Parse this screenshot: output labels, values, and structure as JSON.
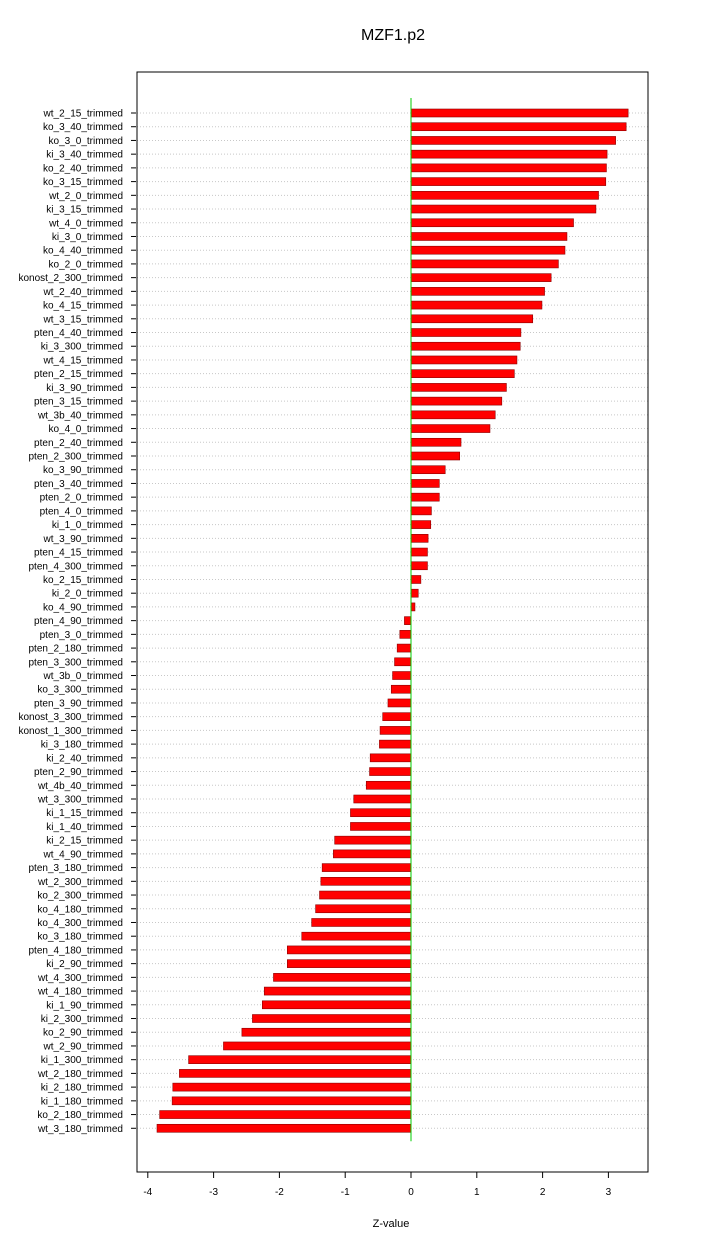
{
  "chart_data": {
    "type": "bar",
    "orientation": "horizontal",
    "title": "MZF1.p2",
    "xlabel": "Z-value",
    "ylabel": "",
    "xlim": [
      -4.0,
      3.6
    ],
    "x_ticks": [
      -4,
      -3,
      -2,
      -1,
      0,
      1,
      2,
      3
    ],
    "grid": "horizontal dotted",
    "colors": {
      "bar": "#ff0000",
      "bar_border": "#8b0000",
      "zero_line": "#00cc00",
      "grid": "#c8c8c8"
    },
    "categories": [
      "wt_2_15_trimmed",
      "ko_3_40_trimmed",
      "ko_3_0_trimmed",
      "ki_3_40_trimmed",
      "ko_2_40_trimmed",
      "ko_3_15_trimmed",
      "wt_2_0_trimmed",
      "ki_3_15_trimmed",
      "wt_4_0_trimmed",
      "ki_3_0_trimmed",
      "ko_4_40_trimmed",
      "ko_2_0_trimmed",
      "konost_2_300_trimmed",
      "wt_2_40_trimmed",
      "ko_4_15_trimmed",
      "wt_3_15_trimmed",
      "pten_4_40_trimmed",
      "ki_3_300_trimmed",
      "wt_4_15_trimmed",
      "pten_2_15_trimmed",
      "ki_3_90_trimmed",
      "pten_3_15_trimmed",
      "wt_3b_40_trimmed",
      "ko_4_0_trimmed",
      "pten_2_40_trimmed",
      "pten_2_300_trimmed",
      "ko_3_90_trimmed",
      "pten_3_40_trimmed",
      "pten_2_0_trimmed",
      "pten_4_0_trimmed",
      "ki_1_0_trimmed",
      "wt_3_90_trimmed",
      "pten_4_15_trimmed",
      "pten_4_300_trimmed",
      "ko_2_15_trimmed",
      "ki_2_0_trimmed",
      "ko_4_90_trimmed",
      "pten_4_90_trimmed",
      "pten_3_0_trimmed",
      "pten_2_180_trimmed",
      "pten_3_300_trimmed",
      "wt_3b_0_trimmed",
      "ko_3_300_trimmed",
      "pten_3_90_trimmed",
      "konost_3_300_trimmed",
      "konost_1_300_trimmed",
      "ki_3_180_trimmed",
      "ki_2_40_trimmed",
      "pten_2_90_trimmed",
      "wt_4b_40_trimmed",
      "wt_3_300_trimmed",
      "ki_1_15_trimmed",
      "ki_1_40_trimmed",
      "ki_2_15_trimmed",
      "wt_4_90_trimmed",
      "pten_3_180_trimmed",
      "wt_2_300_trimmed",
      "ko_2_300_trimmed",
      "ko_4_180_trimmed",
      "ko_4_300_trimmed",
      "ko_3_180_trimmed",
      "pten_4_180_trimmed",
      "ki_2_90_trimmed",
      "wt_4_300_trimmed",
      "wt_4_180_trimmed",
      "ki_1_90_trimmed",
      "ki_2_300_trimmed",
      "ko_2_90_trimmed",
      "wt_2_90_trimmed",
      "ki_1_300_trimmed",
      "wt_2_180_trimmed",
      "ki_2_180_trimmed",
      "ki_1_180_trimmed",
      "ko_2_180_trimmed",
      "wt_3_180_trimmed"
    ],
    "values": [
      3.3,
      3.27,
      3.11,
      2.98,
      2.97,
      2.96,
      2.85,
      2.81,
      2.47,
      2.37,
      2.34,
      2.24,
      2.13,
      2.03,
      1.99,
      1.85,
      1.67,
      1.66,
      1.61,
      1.57,
      1.45,
      1.38,
      1.28,
      1.2,
      0.76,
      0.74,
      0.52,
      0.43,
      0.43,
      0.31,
      0.3,
      0.26,
      0.25,
      0.25,
      0.15,
      0.11,
      0.06,
      -0.1,
      -0.17,
      -0.21,
      -0.25,
      -0.28,
      -0.3,
      -0.35,
      -0.43,
      -0.47,
      -0.48,
      -0.62,
      -0.63,
      -0.68,
      -0.87,
      -0.92,
      -0.92,
      -1.16,
      -1.18,
      -1.35,
      -1.37,
      -1.39,
      -1.45,
      -1.51,
      -1.66,
      -1.88,
      -1.88,
      -2.09,
      -2.23,
      -2.26,
      -2.41,
      -2.57,
      -2.85,
      -3.38,
      -3.52,
      -3.62,
      -3.63,
      -3.82,
      -3.86
    ]
  }
}
